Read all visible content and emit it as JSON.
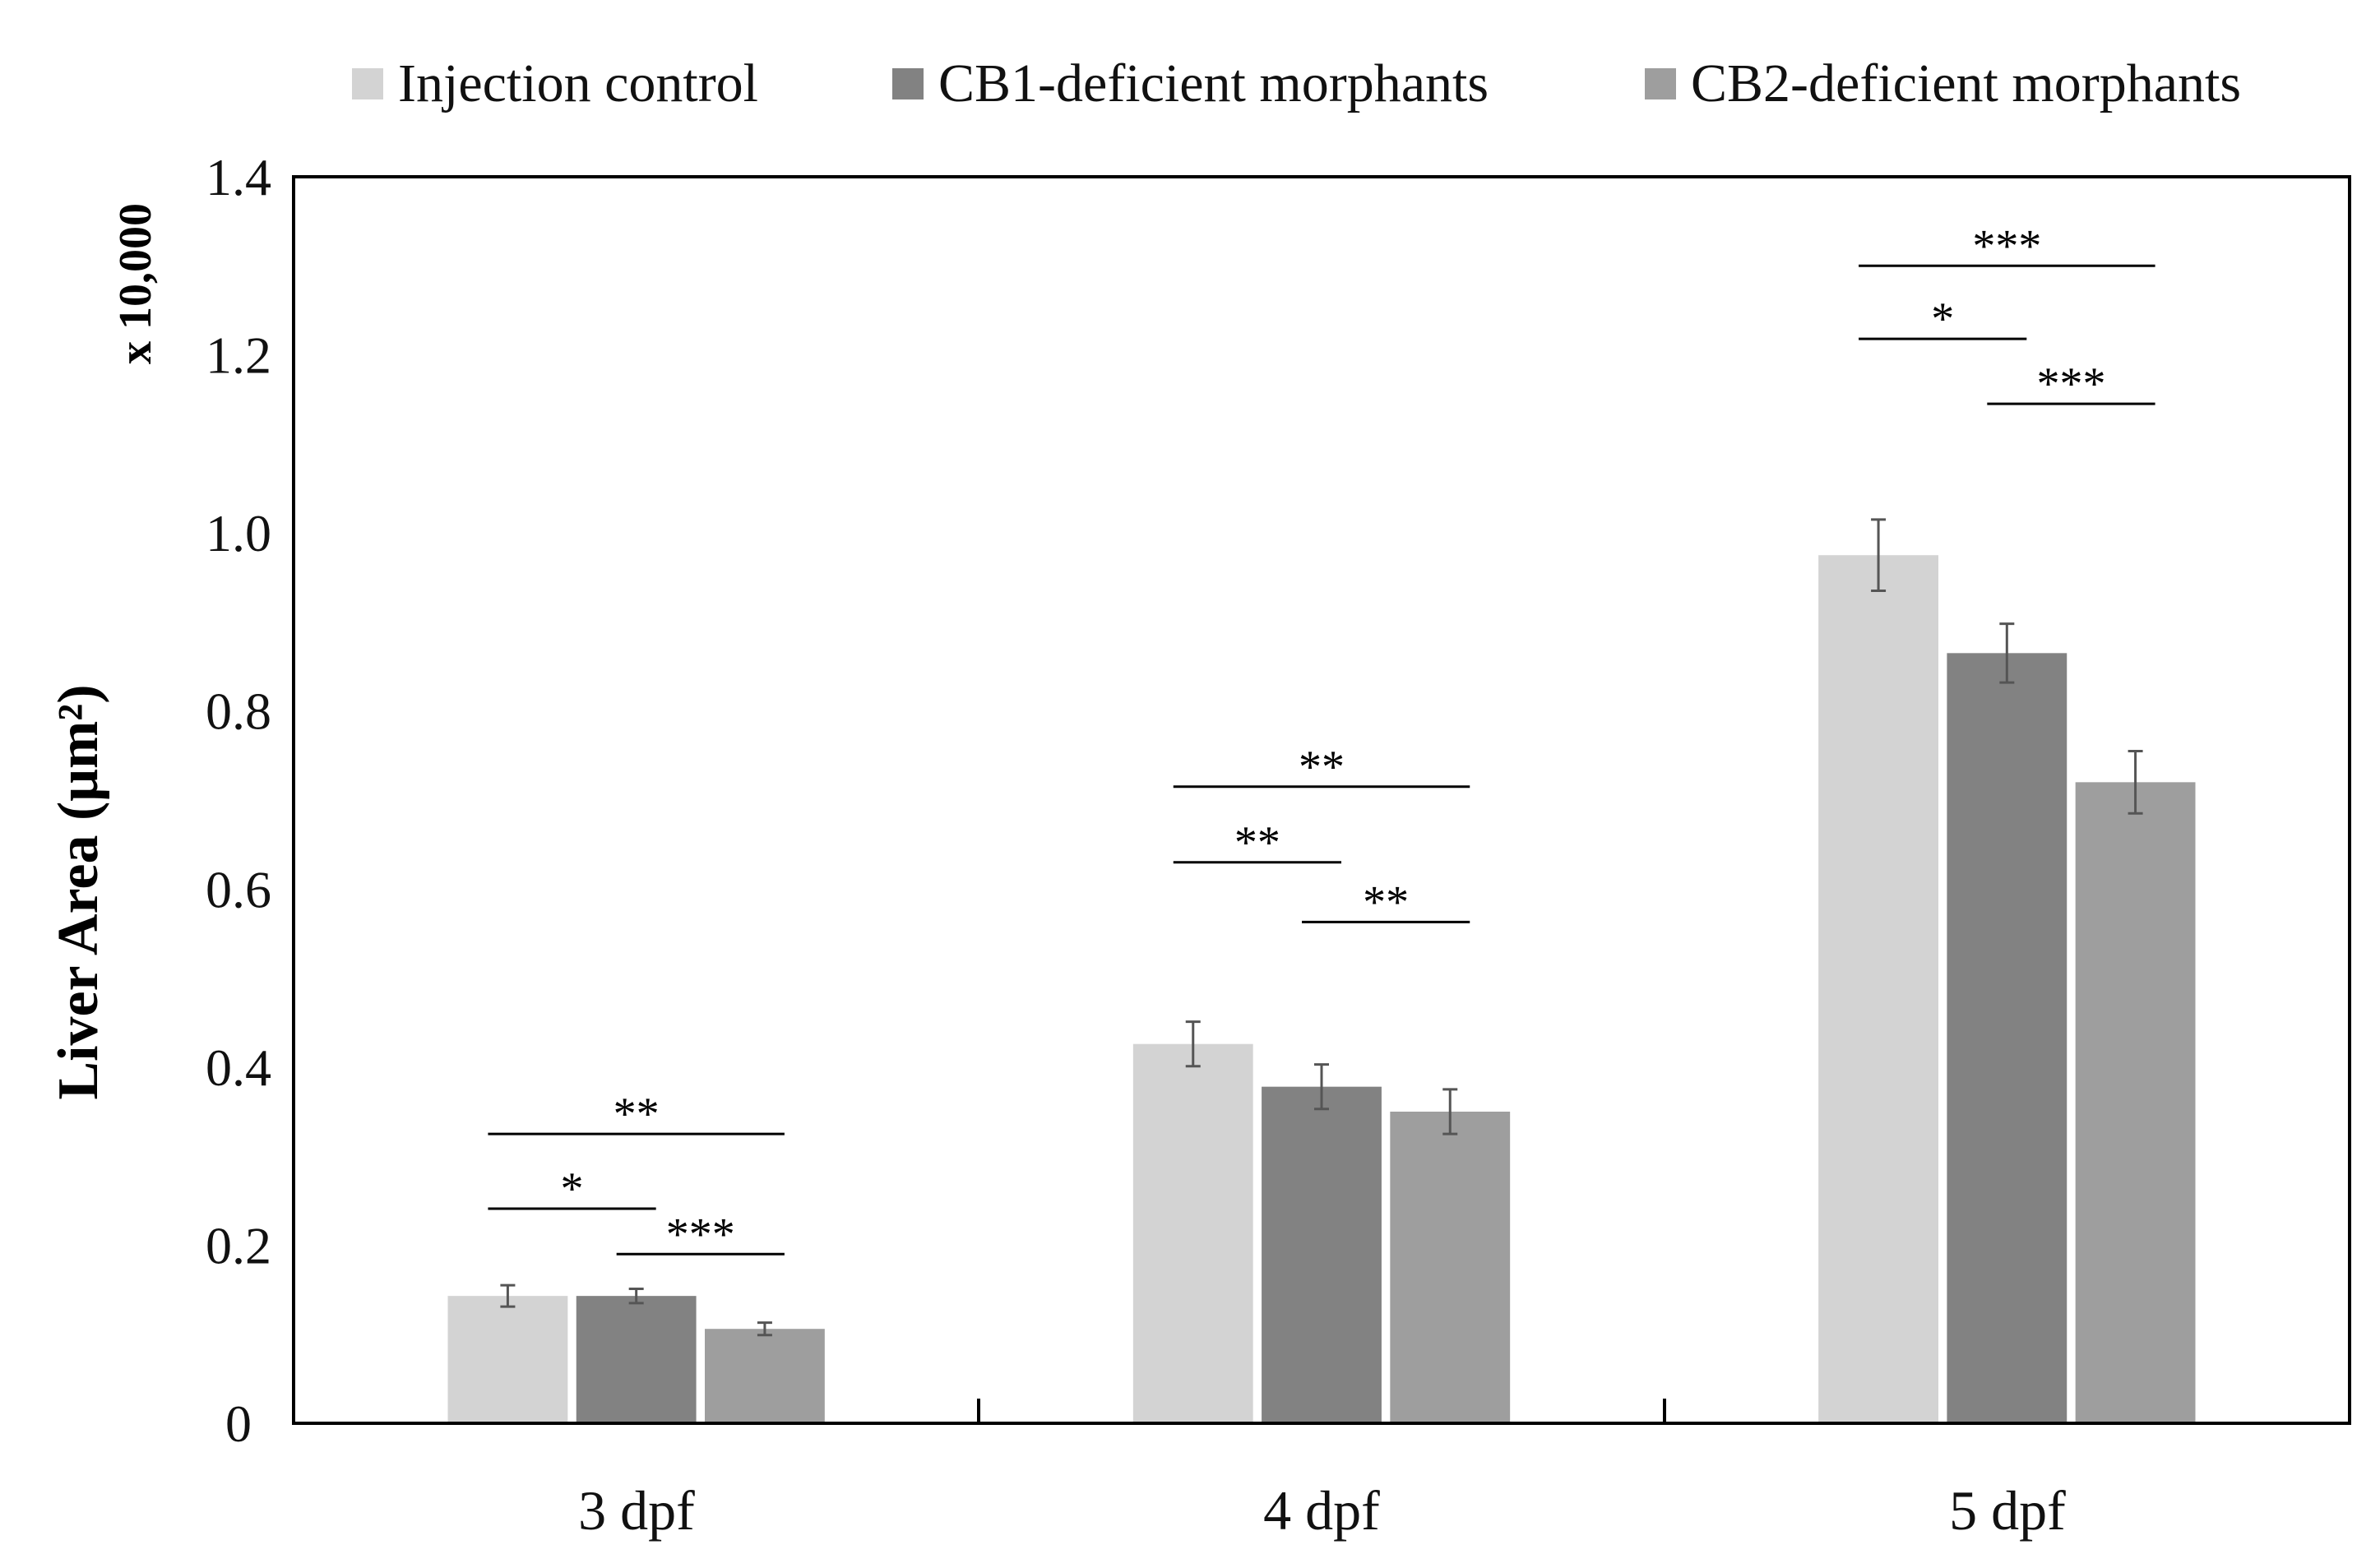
{
  "chart_data": {
    "type": "bar",
    "categories": [
      "3 dpf",
      "4 dpf",
      "5 dpf"
    ],
    "series": [
      {
        "name": "Injection control",
        "color": "#d3d3d3",
        "values": [
          0.143,
          0.426,
          0.975
        ],
        "errors": [
          0.012,
          0.025,
          0.04
        ]
      },
      {
        "name": "CB1-deficient morphants",
        "color": "#828282",
        "values": [
          0.143,
          0.378,
          0.865
        ],
        "errors": [
          0.008,
          0.025,
          0.033
        ]
      },
      {
        "name": "CB2-deficient morphants",
        "color": "#9e9e9e",
        "values": [
          0.106,
          0.35,
          0.72
        ],
        "errors": [
          0.007,
          0.025,
          0.035
        ]
      }
    ],
    "ylabel": "Liver Area (μm²)",
    "multiplier_label": "x 10,000",
    "ylim": [
      0,
      1.4
    ],
    "yticks": [
      0,
      0.2,
      0.4,
      0.6,
      0.8,
      1.0,
      1.2,
      1.4
    ],
    "ytick_labels": [
      "0",
      "0.2",
      "0.4",
      "0.6",
      "0.8",
      "1.0",
      "1.2",
      "1.4"
    ],
    "legend_position": "top",
    "grid": false,
    "significance": [
      {
        "category": 0,
        "from": 0,
        "to": 2,
        "y": 0.325,
        "label": "**"
      },
      {
        "category": 0,
        "from": 0,
        "to": 1,
        "y": 0.241,
        "label": "*"
      },
      {
        "category": 0,
        "from": 1,
        "to": 2,
        "y": 0.19,
        "label": "***"
      },
      {
        "category": 1,
        "from": 0,
        "to": 2,
        "y": 0.715,
        "label": "**"
      },
      {
        "category": 1,
        "from": 0,
        "to": 1,
        "y": 0.63,
        "label": "**"
      },
      {
        "category": 1,
        "from": 1,
        "to": 2,
        "y": 0.563,
        "label": "**"
      },
      {
        "category": 2,
        "from": 0,
        "to": 2,
        "y": 1.3,
        "label": "***"
      },
      {
        "category": 2,
        "from": 0,
        "to": 1,
        "y": 1.218,
        "label": "*"
      },
      {
        "category": 2,
        "from": 1,
        "to": 2,
        "y": 1.145,
        "label": "***"
      }
    ]
  }
}
